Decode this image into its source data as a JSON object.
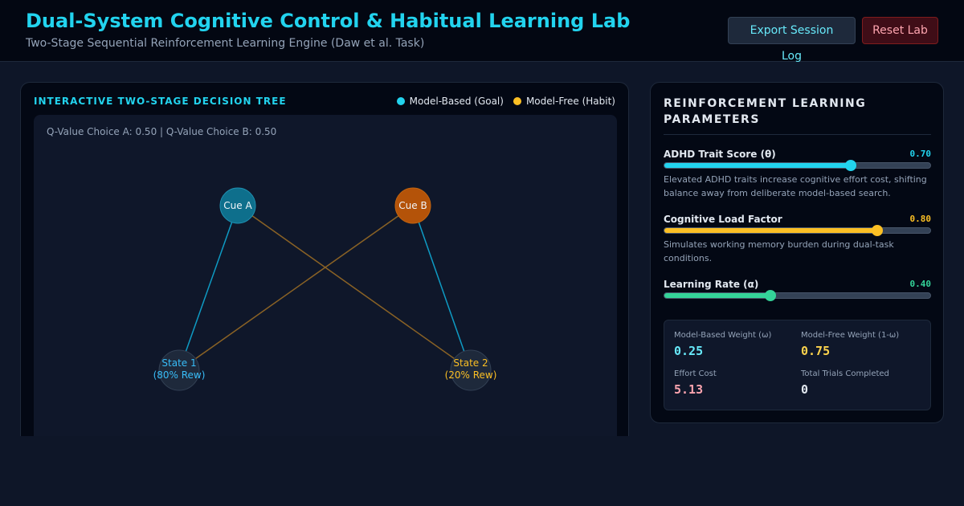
{
  "header": {
    "title": "Dual-System Cognitive Control & Habitual Learning Lab",
    "subtitle": "Two-Stage Sequential Reinforcement Learning Engine (Daw et al. Task)",
    "export_label": "Export Session Log",
    "reset_label": "Reset Lab"
  },
  "tree_panel": {
    "title": "INTERACTIVE TWO-STAGE DECISION TREE",
    "legend": [
      {
        "label": "Model-Based (Goal)",
        "color": "#22d3ee"
      },
      {
        "label": "Model-Free (Habit)",
        "color": "#fbbf24"
      }
    ],
    "qvalues": "Q-Value Choice A: 0.50 | Q-Value Choice B: 0.50",
    "nodes": {
      "cue_a": "Cue A",
      "cue_b": "Cue B",
      "state1_line1": "State 1",
      "state1_line2": "(80% Rew)",
      "state2_line1": "State 2",
      "state2_line2": "(20% Rew)"
    }
  },
  "params_panel": {
    "title": "REINFORCEMENT LEARNING PARAMETERS",
    "params": [
      {
        "label": "ADHD Trait Score (θ)",
        "value_text": "0.70",
        "value": 0.7,
        "color": "#22d3ee",
        "desc": "Elevated ADHD traits increase cognitive effort cost, shifting balance away from deliberate model-based search."
      },
      {
        "label": "Cognitive Load Factor",
        "value_text": "0.80",
        "value": 0.8,
        "color": "#fbbf24",
        "desc": "Simulates working memory burden during dual-task conditions."
      },
      {
        "label": "Learning Rate (α)",
        "value_text": "0.40",
        "value": 0.4,
        "color": "#34d399",
        "desc": ""
      }
    ],
    "stats": [
      {
        "label": "Model-Based Weight (ω)",
        "value": "0.25",
        "color": "#67e8f9"
      },
      {
        "label": "Model-Free Weight (1-ω)",
        "value": "0.75",
        "color": "#fcd34d"
      },
      {
        "label": "Effort Cost",
        "value": "5.13",
        "color": "#fda4af"
      },
      {
        "label": "Total Trials Completed",
        "value": "0",
        "color": "#e2e8f0"
      }
    ]
  }
}
